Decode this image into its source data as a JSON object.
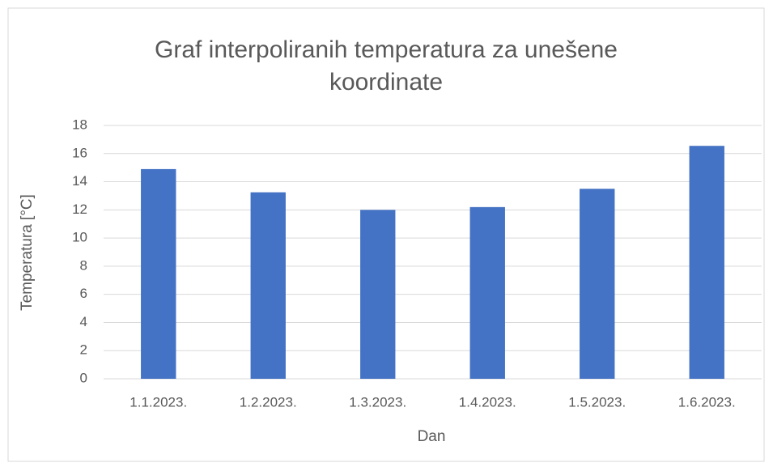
{
  "chart_data": {
    "type": "bar",
    "title": "Graf interpoliranih temperatura za unešene koordinate",
    "x_label": "Dan",
    "y_label": "Temperatura [°C]",
    "categories": [
      "1.1.2023.",
      "1.2.2023.",
      "1.3.2023.",
      "1.4.2023.",
      "1.5.2023.",
      "1.6.2023."
    ],
    "values": [
      14.9,
      13.25,
      12.0,
      12.2,
      13.5,
      16.55
    ],
    "color": "#4472c4",
    "ylim": [
      0,
      18
    ],
    "yticks": [
      0,
      2,
      4,
      6,
      8,
      10,
      12,
      14,
      16,
      18
    ],
    "grid": true
  }
}
